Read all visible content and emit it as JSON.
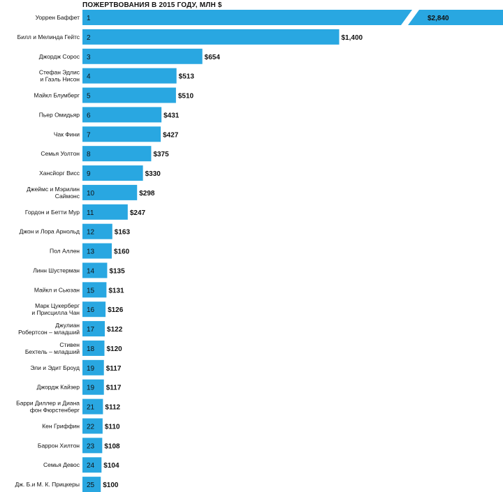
{
  "chart_data": {
    "type": "bar",
    "orientation": "horizontal",
    "title": "ПОЖЕРТВОВАНИЯ В 2015 ГОДУ, МЛН $",
    "bar_color": "#29A7E1",
    "axis_break": true,
    "categories": [
      [
        "Уоррен Баффет"
      ],
      [
        "Билл и Мелинда Гейтс"
      ],
      [
        "Джордж Сорос"
      ],
      [
        "Стефан Эдлис",
        "и Гаэль Нисон"
      ],
      [
        "Майкл Блумберг"
      ],
      [
        "Пьер Омидьяр"
      ],
      [
        "Чак Фини"
      ],
      [
        "Семья Уолтон"
      ],
      [
        "Хансйорг Висс"
      ],
      [
        "Джеймс и Мэрилин",
        "Саймонс"
      ],
      [
        "Гордон и Бетти Мур"
      ],
      [
        "Джон и Лора Арнольд"
      ],
      [
        "Пол Аллен"
      ],
      [
        "Линн Шустерман"
      ],
      [
        "Майкл и Сьюзан"
      ],
      [
        "Марк Цукерберг",
        "и Присцилла Чан"
      ],
      [
        "Джулиан",
        "Робертсон – младший"
      ],
      [
        "Стивен",
        "Бехтель – младший"
      ],
      [
        "Эли и Эдит Броуд"
      ],
      [
        "Джордж Кайзер"
      ],
      [
        "Барри Диллер и Диана",
        "фон Фюрстенберг"
      ],
      [
        "Кен Гриффин"
      ],
      [
        "Баррон Хилтон"
      ],
      [
        "Семья Девос"
      ],
      [
        "Дж. Б.и М. К. Прицкеры"
      ]
    ],
    "ranks": [
      "1",
      "2",
      "3",
      "4",
      "5",
      "6",
      "7",
      "8",
      "9",
      "10",
      "11",
      "12",
      "13",
      "14",
      "15",
      "16",
      "17",
      "18",
      "19",
      "19",
      "21",
      "22",
      "23",
      "24",
      "25"
    ],
    "values": [
      2840,
      1400,
      654,
      513,
      510,
      431,
      427,
      375,
      330,
      298,
      247,
      163,
      160,
      135,
      131,
      126,
      122,
      120,
      117,
      117,
      112,
      110,
      108,
      104,
      100
    ],
    "value_labels": [
      "$2,840",
      "$1,400",
      "$654",
      "$513",
      "$510",
      "$431",
      "$427",
      "$375",
      "$330",
      "$298",
      "$247",
      "$163",
      "$160",
      "$135",
      "$131",
      "$126",
      "$122",
      "$120",
      "$117",
      "$117",
      "$112",
      "$110",
      "$108",
      "$104",
      "$100"
    ]
  }
}
